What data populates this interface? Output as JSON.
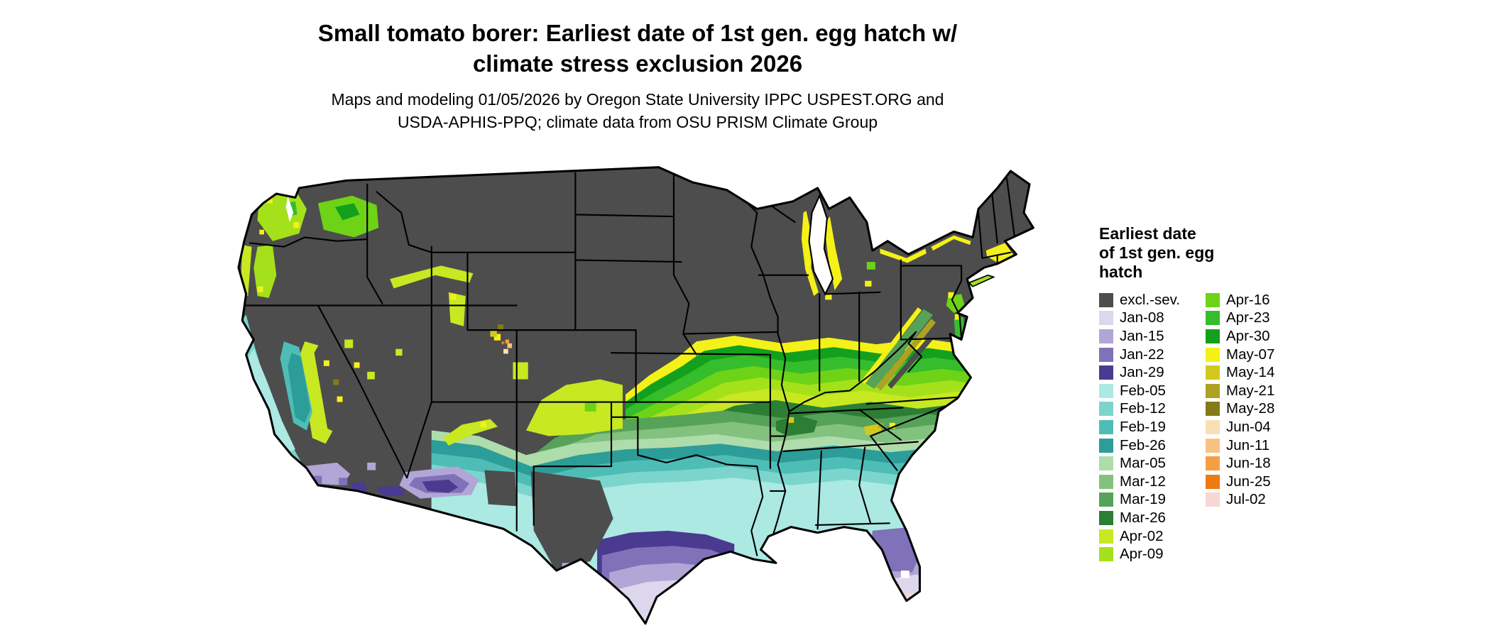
{
  "title": {
    "line1": "Small tomato borer: Earliest date of 1st gen. egg hatch w/",
    "line2": "climate stress exclusion 2026"
  },
  "subtitle": {
    "line1": "Maps and modeling 01/05/2026 by Oregon State University IPPC USPEST.ORG and",
    "line2": "USDA-APHIS-PPQ; climate data from OSU PRISM Climate Group"
  },
  "legend": {
    "title_lines": [
      "Earliest date",
      "of 1st gen. egg",
      "hatch"
    ],
    "column1": [
      {
        "label": "excl.-sev.",
        "color": "#4d4d4d"
      },
      {
        "label": "Jan-08",
        "color": "#dcd7ec"
      },
      {
        "label": "Jan-15",
        "color": "#b1a6d6"
      },
      {
        "label": "Jan-22",
        "color": "#7f72b8"
      },
      {
        "label": "Jan-29",
        "color": "#4a3a90"
      },
      {
        "label": "Feb-05",
        "color": "#abe9e2"
      },
      {
        "label": "Feb-12",
        "color": "#7cd5cd"
      },
      {
        "label": "Feb-19",
        "color": "#4ebdb6"
      },
      {
        "label": "Feb-26",
        "color": "#2c9d98"
      },
      {
        "label": "Mar-05",
        "color": "#aedcaa"
      },
      {
        "label": "Mar-12",
        "color": "#82c17e"
      },
      {
        "label": "Mar-19",
        "color": "#57a259"
      },
      {
        "label": "Mar-26",
        "color": "#2c7e34"
      },
      {
        "label": "Apr-02",
        "color": "#c8e821"
      },
      {
        "label": "Apr-09",
        "color": "#a4e11a"
      }
    ],
    "column2": [
      {
        "label": "Apr-16",
        "color": "#6ed317"
      },
      {
        "label": "Apr-23",
        "color": "#35bd2c"
      },
      {
        "label": "Apr-30",
        "color": "#13a01d"
      },
      {
        "label": "May-07",
        "color": "#f4f118"
      },
      {
        "label": "May-14",
        "color": "#d3c91d"
      },
      {
        "label": "May-21",
        "color": "#ada223"
      },
      {
        "label": "May-28",
        "color": "#857a16"
      },
      {
        "label": "Jun-04",
        "color": "#fadfb5"
      },
      {
        "label": "Jun-11",
        "color": "#f8c181"
      },
      {
        "label": "Jun-18",
        "color": "#f59f43"
      },
      {
        "label": "Jun-25",
        "color": "#ef7a12"
      },
      {
        "label": "Jul-02",
        "color": "#f8d6d4"
      }
    ]
  },
  "map": {
    "border_color": "#000000",
    "water_color": "#ffffff",
    "excluded_color": "#4d4d4d"
  }
}
